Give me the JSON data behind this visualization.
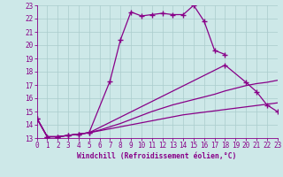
{
  "xlabel": "Windchill (Refroidissement éolien,°C)",
  "ylabel": "",
  "xlim": [
    0,
    23
  ],
  "ylim": [
    13,
    23
  ],
  "yticks": [
    13,
    14,
    15,
    16,
    17,
    18,
    19,
    20,
    21,
    22,
    23
  ],
  "xticks": [
    0,
    1,
    2,
    3,
    4,
    5,
    6,
    7,
    8,
    9,
    10,
    11,
    12,
    13,
    14,
    15,
    16,
    17,
    18,
    19,
    20,
    21,
    22,
    23
  ],
  "background_color": "#cde8e8",
  "line_color": "#880088",
  "grid_color": "#aacccc",
  "series": [
    {
      "x": [
        0,
        1,
        2,
        3,
        4,
        5,
        7,
        8,
        9,
        10,
        11,
        12,
        13,
        14,
        15,
        16,
        17,
        18
      ],
      "y": [
        14.5,
        13.1,
        13.1,
        13.2,
        13.3,
        13.4,
        17.3,
        20.4,
        22.5,
        22.2,
        22.3,
        22.4,
        22.3,
        22.3,
        23.0,
        21.8,
        19.6,
        19.3
      ],
      "has_markers": true
    },
    {
      "x": [
        0,
        1,
        2,
        3,
        4,
        5,
        18,
        20,
        21,
        22,
        23
      ],
      "y": [
        14.5,
        13.1,
        13.1,
        13.2,
        13.3,
        13.4,
        18.5,
        17.2,
        16.5,
        15.5,
        15.0
      ],
      "has_markers": true
    },
    {
      "x": [
        0,
        1,
        2,
        3,
        4,
        5,
        6,
        7,
        8,
        9,
        10,
        11,
        12,
        13,
        14,
        15,
        16,
        17,
        18,
        19,
        20,
        21,
        22,
        23
      ],
      "y": [
        14.5,
        13.1,
        13.1,
        13.2,
        13.3,
        13.4,
        13.6,
        13.85,
        14.1,
        14.4,
        14.7,
        15.0,
        15.25,
        15.5,
        15.7,
        15.9,
        16.1,
        16.3,
        16.55,
        16.75,
        16.95,
        17.1,
        17.2,
        17.35
      ],
      "has_markers": false
    },
    {
      "x": [
        0,
        1,
        2,
        3,
        4,
        5,
        6,
        7,
        8,
        9,
        10,
        11,
        12,
        13,
        14,
        15,
        16,
        17,
        18,
        19,
        20,
        21,
        22,
        23
      ],
      "y": [
        14.5,
        13.1,
        13.1,
        13.2,
        13.3,
        13.4,
        13.55,
        13.7,
        13.85,
        14.0,
        14.15,
        14.3,
        14.45,
        14.6,
        14.75,
        14.85,
        14.95,
        15.05,
        15.15,
        15.25,
        15.35,
        15.45,
        15.55,
        15.65
      ],
      "has_markers": false
    }
  ]
}
